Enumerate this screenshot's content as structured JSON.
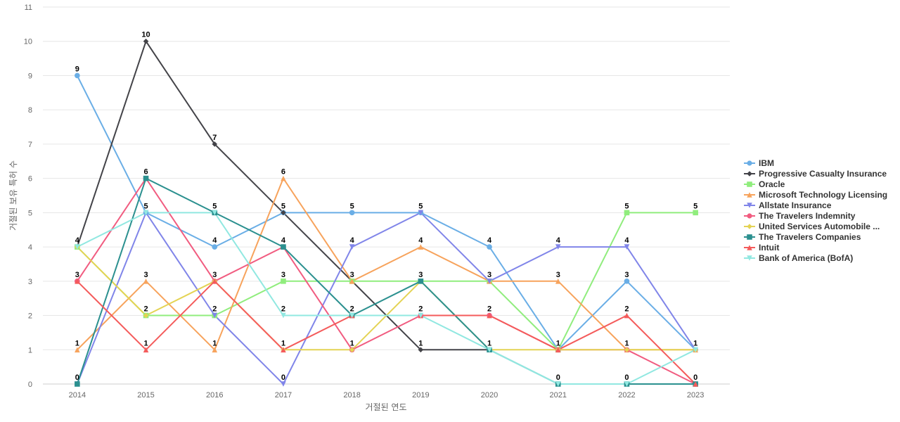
{
  "chart_data": {
    "type": "line",
    "title": "",
    "xlabel": "거절된 연도",
    "ylabel": "거절된 보유 특허 수",
    "x": [
      "2014",
      "2015",
      "2016",
      "2017",
      "2018",
      "2019",
      "2020",
      "2021",
      "2022",
      "2023"
    ],
    "ylim": [
      0,
      11
    ],
    "yticks": [
      0,
      1,
      2,
      3,
      4,
      5,
      6,
      7,
      8,
      9,
      10,
      11
    ],
    "grid": true,
    "legend_position": "right",
    "series": [
      {
        "name": "IBM",
        "color": "#6aaee6",
        "marker": "circle",
        "values": [
          9,
          5,
          4,
          5,
          5,
          5,
          4,
          1,
          3,
          1
        ]
      },
      {
        "name": "Progressive Casualty Insurance",
        "color": "#434348",
        "marker": "diamond",
        "values": [
          4,
          10,
          7,
          5,
          3,
          1,
          1,
          null,
          null,
          null
        ]
      },
      {
        "name": "Oracle",
        "color": "#90ed7d",
        "marker": "square",
        "values": [
          4,
          2,
          2,
          3,
          3,
          3,
          3,
          1,
          5,
          5
        ]
      },
      {
        "name": "Microsoft Technology Licensing",
        "color": "#f7a35c",
        "marker": "triangle",
        "values": [
          1,
          3,
          1,
          6,
          3,
          4,
          3,
          3,
          1,
          1
        ]
      },
      {
        "name": "Allstate Insurance",
        "color": "#8085e9",
        "marker": "triangle-down",
        "values": [
          0,
          5,
          2,
          0,
          4,
          5,
          3,
          4,
          4,
          1
        ]
      },
      {
        "name": "The Travelers Indemnity",
        "color": "#f15c80",
        "marker": "circle",
        "values": [
          3,
          6,
          3,
          4,
          1,
          2,
          2,
          1,
          1,
          0
        ]
      },
      {
        "name": "United Services Automobile ...",
        "color": "#e4d354",
        "marker": "diamond",
        "values": [
          4,
          2,
          3,
          1,
          1,
          3,
          1,
          1,
          1,
          1
        ]
      },
      {
        "name": "The Travelers Companies",
        "color": "#2b908f",
        "marker": "square",
        "values": [
          0,
          6,
          5,
          4,
          2,
          3,
          1,
          0,
          0,
          0
        ]
      },
      {
        "name": "Intuit",
        "color": "#f45b5b",
        "marker": "triangle",
        "values": [
          3,
          1,
          3,
          1,
          2,
          2,
          2,
          1,
          2,
          0
        ]
      },
      {
        "name": "Bank of America (BofA)",
        "color": "#91e8e1",
        "marker": "triangle-down",
        "values": [
          4,
          5,
          5,
          2,
          2,
          2,
          1,
          0,
          0,
          1
        ]
      }
    ],
    "data_labels": [
      {
        "x": "2014",
        "labels": [
          9,
          4,
          3,
          1,
          0
        ]
      },
      {
        "x": "2015",
        "labels": [
          10,
          6,
          5,
          3,
          2,
          1
        ]
      },
      {
        "x": "2016",
        "labels": [
          7,
          5,
          4,
          3,
          2,
          1
        ]
      },
      {
        "x": "2017",
        "labels": [
          6,
          5,
          4,
          3,
          2,
          1,
          0
        ]
      },
      {
        "x": "2018",
        "labels": [
          5,
          4,
          3,
          2,
          1
        ]
      },
      {
        "x": "2019",
        "labels": [
          5,
          4,
          3,
          2,
          1
        ]
      },
      {
        "x": "2020",
        "labels": [
          4,
          3,
          2,
          1
        ]
      },
      {
        "x": "2021",
        "labels": [
          4,
          3,
          1,
          0
        ]
      },
      {
        "x": "2022",
        "labels": [
          5,
          4,
          3,
          2,
          1,
          0
        ]
      },
      {
        "x": "2023",
        "labels": [
          5,
          1,
          0
        ]
      }
    ]
  }
}
